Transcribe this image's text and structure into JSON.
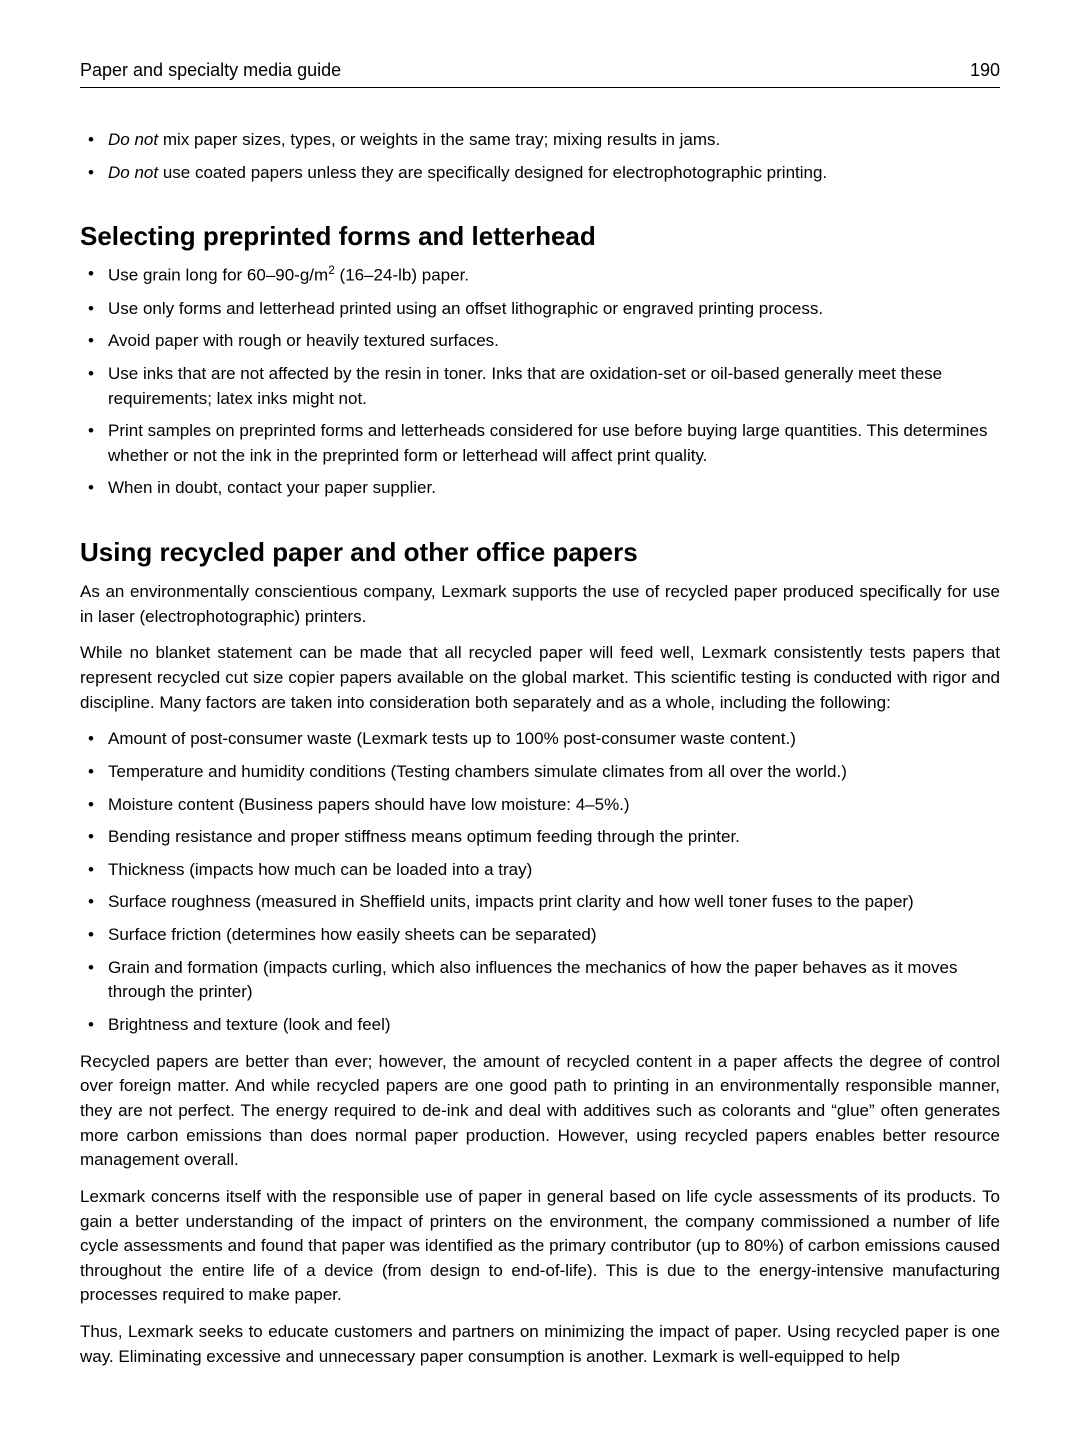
{
  "page": {
    "header_title": "Paper and specialty media guide",
    "page_number": "190"
  },
  "top_bullets": [
    {
      "prefix_em": "Do not",
      "rest": " mix paper sizes, types, or weights in the same tray; mixing results in jams."
    },
    {
      "prefix_em": "Do not",
      "rest": " use coated papers unless they are specifically designed for electrophotographic printing."
    }
  ],
  "section1": {
    "heading": "Selecting preprinted forms and letterhead",
    "bullets": [
      {
        "html": "Use grain long for 60–90-g/m<sup>2</sup> (16–24-lb) paper."
      },
      {
        "html": "Use only forms and letterhead printed using an offset lithographic or engraved printing process."
      },
      {
        "html": "Avoid paper with rough or heavily textured surfaces."
      },
      {
        "html": "Use inks that are not affected by the resin in toner. Inks that are oxidation-set or oil-based generally meet these requirements; latex inks might not."
      },
      {
        "html": "Print samples on preprinted forms and letterheads considered for use before buying large quantities. This determines whether or not the ink in the preprinted form or letterhead will affect print quality."
      },
      {
        "html": "When in doubt, contact your paper supplier."
      }
    ]
  },
  "section2": {
    "heading": "Using recycled paper and other office papers",
    "para1": "As an environmentally conscientious company, Lexmark supports the use of recycled paper produced specifically for use in laser (electrophotographic) printers.",
    "para2": "While no blanket statement can be made that all recycled paper will feed well, Lexmark consistently tests papers that represent recycled cut size copier papers available on the global market. This scientific testing is conducted with rigor and discipline. Many factors are taken into consideration both separately and as a whole, including the following:",
    "bullets": [
      "Amount of post-consumer waste (Lexmark tests up to 100% post-consumer waste content.)",
      "Temperature and humidity conditions (Testing chambers simulate climates from all over the world.)",
      "Moisture content (Business papers should have low moisture: 4–5%.)",
      "Bending resistance and proper stiffness means optimum feeding through the printer.",
      "Thickness (impacts how much can be loaded into a tray)",
      "Surface roughness (measured in Sheffield units, impacts print clarity and how well toner fuses to the paper)",
      "Surface friction (determines how easily sheets can be separated)",
      "Grain and formation (impacts curling, which also influences the mechanics of how the paper behaves as it moves through the printer)",
      "Brightness and texture (look and feel)"
    ],
    "para3": "Recycled papers are better than ever; however, the amount of recycled content in a paper affects the degree of control over foreign matter. And while recycled papers are one good path to printing in an environmentally responsible manner, they are not perfect. The energy required to de-ink and deal with additives such as colorants and “glue” often generates more carbon emissions than does normal paper production. However, using recycled papers enables better resource management overall.",
    "para4": "Lexmark concerns itself with the responsible use of paper in general based on life cycle assessments of its products. To gain a better understanding of the impact of printers on the environment, the company commissioned a number of life cycle assessments and found that paper was identified as the primary contributor (up to 80%) of carbon emissions caused throughout the entire life of a device (from design to end-of-life). This is due to the energy-intensive manufacturing processes required to make paper.",
    "para5": "Thus, Lexmark seeks to educate customers and partners on minimizing the impact of paper. Using recycled paper is one way. Eliminating excessive and unnecessary paper consumption is another. Lexmark is well-equipped to help"
  },
  "styles": {
    "body_font_family": "Segoe UI / Helvetica",
    "heading_font_size_pt": 20,
    "body_font_size_pt": 12.5,
    "text_color": "#000000",
    "background_color": "#ffffff",
    "rule_color": "#000000"
  }
}
